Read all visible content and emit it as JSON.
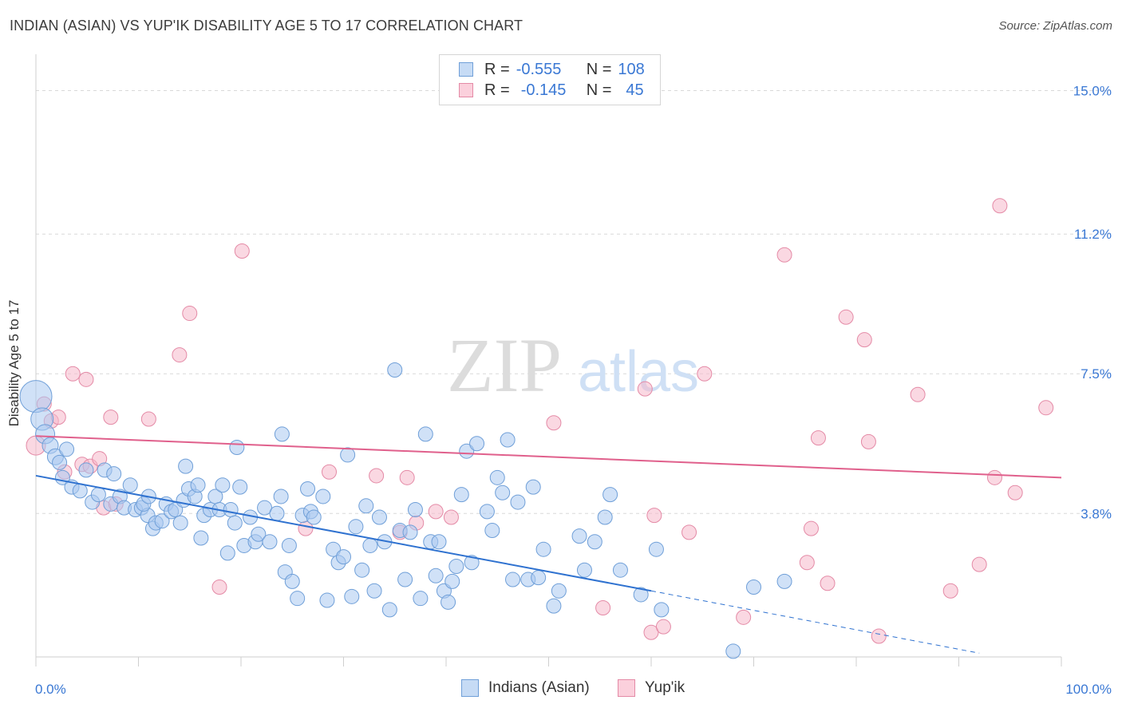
{
  "header": {
    "title": "INDIAN (ASIAN) VS YUP'IK DISABILITY AGE 5 TO 17 CORRELATION CHART",
    "source": "Source: ZipAtlas.com"
  },
  "watermark": {
    "zip": "ZIP",
    "atlas": "atlas"
  },
  "legend_top": {
    "rows": [
      {
        "r_label": "R =",
        "r_value": "-0.555",
        "n_label": "N =",
        "n_value": "108",
        "color": "#a9c8f0"
      },
      {
        "r_label": "R =",
        "r_value": "-0.145",
        "n_label": "N =",
        "n_value": "45",
        "color": "#f5b8ca"
      }
    ]
  },
  "legend_bottom": {
    "items": [
      {
        "label": "Indians (Asian)",
        "color": "#a9c8f0"
      },
      {
        "label": "Yup'ik",
        "color": "#f5b8ca"
      }
    ]
  },
  "colors": {
    "blue_fill": "#a9c8f0",
    "blue_stroke": "#6f9fd8",
    "blue_line": "#2f72d0",
    "pink_fill": "#f5b8ca",
    "pink_stroke": "#e48aa6",
    "pink_line": "#e0608c",
    "tick_label": "#3a78d4",
    "grid": "#d9d9d9"
  },
  "chart_data": {
    "type": "scatter",
    "title": "INDIAN (ASIAN) VS YUP'IK DISABILITY AGE 5 TO 17 CORRELATION CHART",
    "xlabel": "",
    "ylabel": "Disability Age 5 to 17",
    "xlim": [
      0,
      100
    ],
    "ylim": [
      0,
      15.75
    ],
    "x_tick_labels": [
      "0.0%",
      "100.0%"
    ],
    "y_ticks": [
      3.8,
      7.5,
      11.2,
      15.0
    ],
    "y_tick_labels": [
      "3.8%",
      "7.5%",
      "11.2%",
      "15.0%"
    ],
    "grid": "horizontal dashed",
    "legend_position": "top-center",
    "series": [
      {
        "name": "Indians (Asian)",
        "r": -0.555,
        "n": 108,
        "trend": {
          "x": [
            0,
            60
          ],
          "y": [
            4.8,
            1.75
          ],
          "dashed_extension": {
            "x": [
              60,
              92
            ],
            "y": [
              1.75,
              0.1
            ]
          }
        },
        "points": [
          [
            0.0,
            6.9,
            20
          ],
          [
            0.6,
            6.3,
            14
          ],
          [
            0.9,
            5.9,
            12
          ],
          [
            1.4,
            5.6,
            10
          ],
          [
            1.9,
            5.3,
            10
          ],
          [
            2.3,
            5.15,
            9
          ],
          [
            3.0,
            5.5,
            9
          ],
          [
            2.6,
            4.75,
            9
          ],
          [
            3.5,
            4.5,
            9
          ],
          [
            4.3,
            4.4,
            9
          ],
          [
            4.9,
            4.95,
            9
          ],
          [
            5.5,
            4.1,
            9
          ],
          [
            6.1,
            4.3,
            9
          ],
          [
            6.7,
            4.95,
            9
          ],
          [
            7.3,
            4.05,
            9
          ],
          [
            7.6,
            4.85,
            9
          ],
          [
            8.2,
            4.25,
            9
          ],
          [
            8.6,
            3.95,
            9
          ],
          [
            9.2,
            4.55,
            9
          ],
          [
            9.7,
            3.9,
            9
          ],
          [
            10.3,
            3.95,
            9
          ],
          [
            10.9,
            3.75,
            9
          ],
          [
            11.4,
            3.4,
            9
          ],
          [
            10.5,
            4.05,
            9
          ],
          [
            11.0,
            4.25,
            9
          ],
          [
            11.7,
            3.55,
            9
          ],
          [
            12.3,
            3.6,
            9
          ],
          [
            12.7,
            4.05,
            9
          ],
          [
            13.2,
            3.85,
            9
          ],
          [
            13.6,
            3.9,
            9
          ],
          [
            14.1,
            3.55,
            9
          ],
          [
            14.4,
            4.15,
            9
          ],
          [
            14.6,
            5.05,
            9
          ],
          [
            14.9,
            4.45,
            9
          ],
          [
            15.5,
            4.25,
            9
          ],
          [
            15.8,
            4.55,
            9
          ],
          [
            16.1,
            3.15,
            9
          ],
          [
            16.4,
            3.75,
            9
          ],
          [
            17.0,
            3.9,
            9
          ],
          [
            17.5,
            4.25,
            9
          ],
          [
            17.9,
            3.9,
            9
          ],
          [
            18.2,
            4.55,
            9
          ],
          [
            18.7,
            2.75,
            9
          ],
          [
            19.0,
            3.9,
            9
          ],
          [
            19.4,
            3.55,
            9
          ],
          [
            19.6,
            5.55,
            9
          ],
          [
            19.9,
            4.5,
            9
          ],
          [
            20.3,
            2.95,
            9
          ],
          [
            20.9,
            3.7,
            9
          ],
          [
            21.4,
            3.05,
            9
          ],
          [
            21.7,
            3.25,
            9
          ],
          [
            22.3,
            3.95,
            9
          ],
          [
            22.8,
            3.05,
            9
          ],
          [
            23.5,
            3.8,
            9
          ],
          [
            23.9,
            4.25,
            9
          ],
          [
            24.0,
            5.9,
            9
          ],
          [
            24.3,
            2.25,
            9
          ],
          [
            24.7,
            2.95,
            9
          ],
          [
            25.0,
            2.0,
            9
          ],
          [
            25.5,
            1.55,
            9
          ],
          [
            26.0,
            3.75,
            9
          ],
          [
            26.5,
            4.45,
            9
          ],
          [
            26.8,
            3.85,
            9
          ],
          [
            27.1,
            3.7,
            9
          ],
          [
            28.0,
            4.25,
            9
          ],
          [
            28.4,
            1.5,
            9
          ],
          [
            29.0,
            2.85,
            9
          ],
          [
            29.5,
            2.5,
            9
          ],
          [
            30.0,
            2.65,
            9
          ],
          [
            30.4,
            5.35,
            9
          ],
          [
            30.8,
            1.6,
            9
          ],
          [
            31.2,
            3.45,
            9
          ],
          [
            31.8,
            2.3,
            9
          ],
          [
            32.2,
            4.0,
            9
          ],
          [
            32.6,
            2.95,
            9
          ],
          [
            33.0,
            1.75,
            9
          ],
          [
            33.5,
            3.7,
            9
          ],
          [
            34.0,
            3.05,
            9
          ],
          [
            34.5,
            1.25,
            9
          ],
          [
            35.0,
            7.6,
            9
          ],
          [
            35.5,
            3.35,
            9
          ],
          [
            36.0,
            2.05,
            9
          ],
          [
            36.5,
            3.3,
            9
          ],
          [
            37.0,
            3.9,
            9
          ],
          [
            37.5,
            1.55,
            9
          ],
          [
            38.0,
            5.9,
            9
          ],
          [
            38.5,
            3.05,
            9
          ],
          [
            39.0,
            2.15,
            9
          ],
          [
            39.3,
            3.05,
            9
          ],
          [
            39.8,
            1.75,
            9
          ],
          [
            40.2,
            1.45,
            9
          ],
          [
            40.6,
            2.0,
            9
          ],
          [
            41.0,
            2.4,
            9
          ],
          [
            41.5,
            4.3,
            9
          ],
          [
            42.0,
            5.45,
            9
          ],
          [
            42.5,
            2.5,
            9
          ],
          [
            43.0,
            5.65,
            9
          ],
          [
            44.0,
            3.85,
            9
          ],
          [
            44.5,
            3.35,
            9
          ],
          [
            45.0,
            4.75,
            9
          ],
          [
            45.5,
            4.35,
            9
          ],
          [
            46.0,
            5.75,
            9
          ],
          [
            46.5,
            2.05,
            9
          ],
          [
            47.0,
            4.1,
            9
          ],
          [
            48.0,
            2.05,
            9
          ],
          [
            48.5,
            4.5,
            9
          ],
          [
            49.0,
            2.1,
            9
          ],
          [
            49.5,
            2.85,
            9
          ],
          [
            50.5,
            1.35,
            9
          ],
          [
            51.0,
            1.75,
            9
          ],
          [
            53.0,
            3.2,
            9
          ],
          [
            53.5,
            2.3,
            9
          ],
          [
            54.5,
            3.05,
            9
          ],
          [
            55.5,
            3.7,
            9
          ],
          [
            56.0,
            4.3,
            9
          ],
          [
            57.0,
            2.3,
            9
          ],
          [
            59.0,
            1.65,
            9
          ],
          [
            60.5,
            2.85,
            9
          ],
          [
            61.0,
            1.25,
            9
          ],
          [
            68.0,
            0.15,
            9
          ],
          [
            70.0,
            1.85,
            9
          ],
          [
            73.0,
            2.0,
            9
          ]
        ]
      },
      {
        "name": "Yup'ik",
        "r": -0.145,
        "n": 45,
        "trend": {
          "x": [
            0,
            100
          ],
          "y": [
            5.85,
            4.75
          ]
        },
        "points": [
          [
            0.0,
            5.6,
            12
          ],
          [
            0.8,
            6.7,
            9
          ],
          [
            1.5,
            6.25,
            9
          ],
          [
            2.2,
            6.35,
            9
          ],
          [
            2.8,
            4.9,
            9
          ],
          [
            3.6,
            7.5,
            9
          ],
          [
            4.5,
            5.1,
            9
          ],
          [
            4.9,
            7.35,
            9
          ],
          [
            5.3,
            5.05,
            9
          ],
          [
            6.2,
            5.25,
            9
          ],
          [
            6.6,
            3.95,
            9
          ],
          [
            7.3,
            6.35,
            9
          ],
          [
            7.8,
            4.05,
            9
          ],
          [
            11.0,
            6.3,
            9
          ],
          [
            14.0,
            8.0,
            9
          ],
          [
            15.0,
            9.1,
            9
          ],
          [
            17.9,
            1.85,
            9
          ],
          [
            20.1,
            10.75,
            9
          ],
          [
            26.3,
            3.4,
            9
          ],
          [
            28.6,
            4.9,
            9
          ],
          [
            33.2,
            4.8,
            9
          ],
          [
            35.5,
            3.3,
            9
          ],
          [
            36.2,
            4.75,
            9
          ],
          [
            37.1,
            3.55,
            9
          ],
          [
            39.0,
            3.85,
            9
          ],
          [
            40.5,
            3.7,
            9
          ],
          [
            50.5,
            6.2,
            9
          ],
          [
            55.3,
            1.3,
            9
          ],
          [
            59.4,
            7.1,
            9
          ],
          [
            60.0,
            0.65,
            9
          ],
          [
            60.3,
            3.75,
            9
          ],
          [
            61.2,
            0.8,
            9
          ],
          [
            63.7,
            3.3,
            9
          ],
          [
            65.2,
            7.5,
            9
          ],
          [
            69.0,
            1.05,
            9
          ],
          [
            73.0,
            10.65,
            9
          ],
          [
            75.2,
            2.5,
            9
          ],
          [
            75.6,
            3.4,
            9
          ],
          [
            76.3,
            5.8,
            9
          ],
          [
            77.2,
            1.95,
            9
          ],
          [
            79.0,
            9.0,
            9
          ],
          [
            80.8,
            8.4,
            9
          ],
          [
            81.2,
            5.7,
            9
          ],
          [
            82.2,
            0.55,
            9
          ],
          [
            86.0,
            6.95,
            9
          ],
          [
            89.2,
            1.75,
            9
          ],
          [
            92.0,
            2.45,
            9
          ],
          [
            93.5,
            4.75,
            9
          ],
          [
            94.0,
            11.95,
            9
          ],
          [
            95.5,
            4.35,
            9
          ],
          [
            98.5,
            6.6,
            9
          ]
        ]
      }
    ]
  }
}
